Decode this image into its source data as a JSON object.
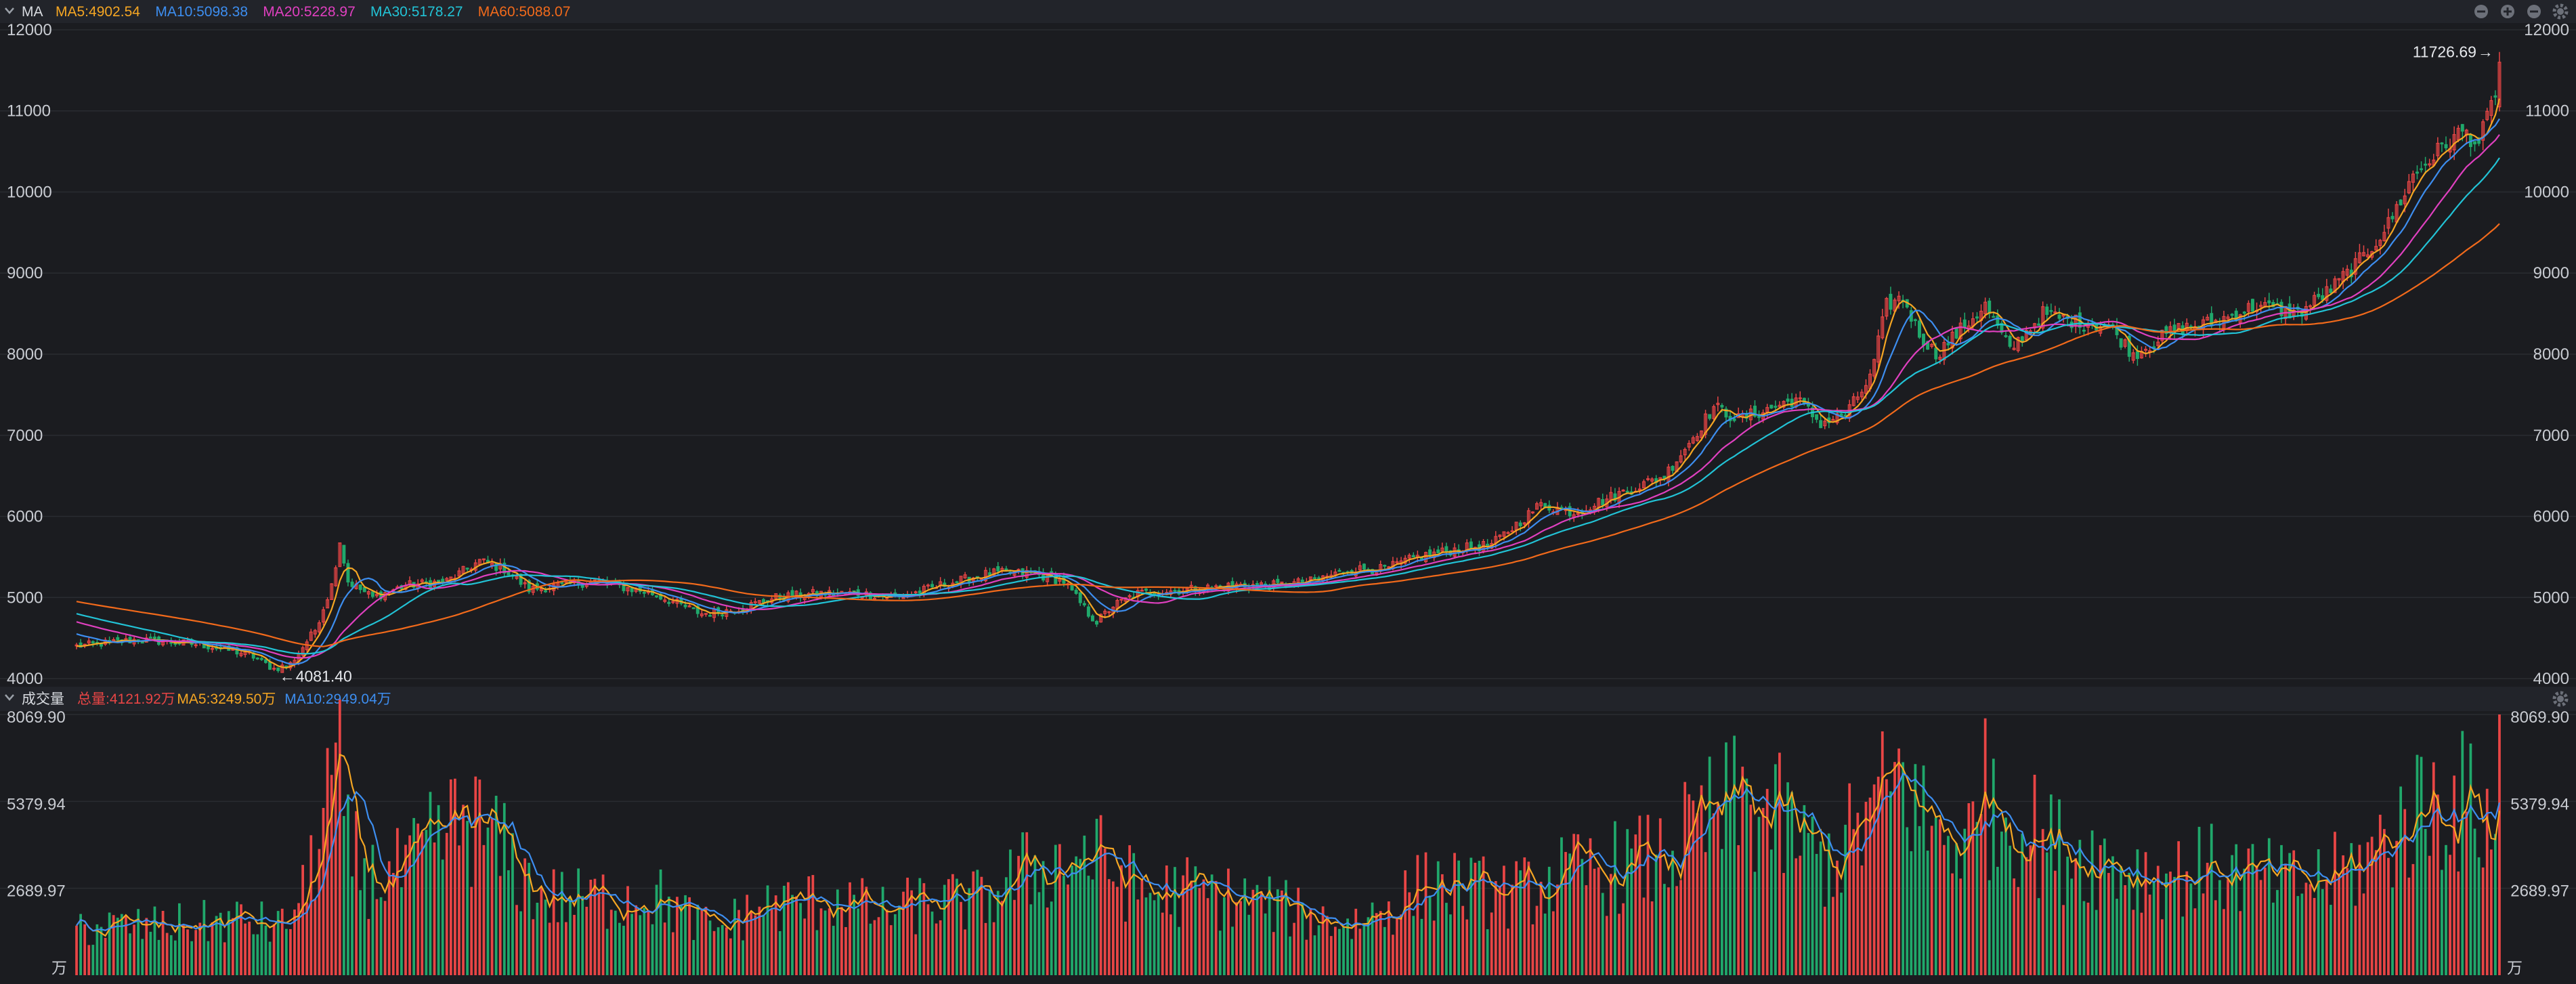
{
  "price_panel": {
    "title": "MA",
    "legend": [
      {
        "label": "MA5:4902.54",
        "color": "#f5a623"
      },
      {
        "label": "MA10:5098.38",
        "color": "#3d8ef0"
      },
      {
        "label": "MA20:5228.97",
        "color": "#e040c0"
      },
      {
        "label": "MA30:5178.27",
        "color": "#22c3d6"
      },
      {
        "label": "MA60:5088.07",
        "color": "#f26a1b"
      }
    ],
    "max_label": "11726.69",
    "min_label": "4081.40"
  },
  "volume_panel": {
    "title": "成交量",
    "legend": [
      {
        "label": "总量:4121.92万",
        "color": "#e84545"
      },
      {
        "label": "MA5:3249.50万",
        "color": "#f5a623"
      },
      {
        "label": "MA10:2949.04万",
        "color": "#3d8ef0"
      }
    ],
    "unit": "万"
  },
  "colors": {
    "up": "#e84545",
    "down": "#20a86b",
    "grid": "#2a2c31",
    "text": "#c9ccd2"
  },
  "chart_data": [
    {
      "type": "candlestick",
      "yticks": [
        "12000",
        "11000",
        "10000",
        "9000",
        "8000",
        "7000",
        "6000",
        "5000",
        "4000"
      ],
      "ylim": [
        3950,
        12050
      ],
      "ma_periods": [
        5,
        10,
        20,
        30,
        60
      ],
      "anchors": [
        [
          0,
          4400
        ],
        [
          15,
          4480
        ],
        [
          30,
          4420
        ],
        [
          42,
          4300
        ],
        [
          48,
          4120
        ],
        [
          52,
          4180
        ],
        [
          58,
          4600
        ],
        [
          62,
          5150
        ],
        [
          64,
          5700
        ],
        [
          66,
          5200
        ],
        [
          72,
          5000
        ],
        [
          80,
          5150
        ],
        [
          90,
          5200
        ],
        [
          98,
          5450
        ],
        [
          104,
          5350
        ],
        [
          110,
          5100
        ],
        [
          118,
          5150
        ],
        [
          126,
          5200
        ],
        [
          140,
          5050
        ],
        [
          152,
          4800
        ],
        [
          160,
          4850
        ],
        [
          170,
          5000
        ],
        [
          180,
          5050
        ],
        [
          190,
          5050
        ],
        [
          200,
          5000
        ],
        [
          210,
          5150
        ],
        [
          222,
          5300
        ],
        [
          232,
          5300
        ],
        [
          240,
          5200
        ],
        [
          246,
          4800
        ],
        [
          248,
          4700
        ],
        [
          252,
          4900
        ],
        [
          258,
          5050
        ],
        [
          270,
          5100
        ],
        [
          282,
          5150
        ],
        [
          292,
          5150
        ],
        [
          300,
          5200
        ],
        [
          310,
          5350
        ],
        [
          318,
          5350
        ],
        [
          326,
          5500
        ],
        [
          336,
          5600
        ],
        [
          344,
          5650
        ],
        [
          350,
          5900
        ],
        [
          356,
          6150
        ],
        [
          364,
          6050
        ],
        [
          376,
          6300
        ],
        [
          386,
          6500
        ],
        [
          394,
          7050
        ],
        [
          398,
          7350
        ],
        [
          404,
          7200
        ],
        [
          410,
          7300
        ],
        [
          418,
          7450
        ],
        [
          424,
          7150
        ],
        [
          430,
          7250
        ],
        [
          436,
          7700
        ],
        [
          440,
          8600
        ],
        [
          444,
          8700
        ],
        [
          448,
          8250
        ],
        [
          452,
          8000
        ],
        [
          458,
          8300
        ],
        [
          464,
          8600
        ],
        [
          470,
          8050
        ],
        [
          478,
          8500
        ],
        [
          486,
          8400
        ],
        [
          494,
          8350
        ],
        [
          500,
          8000
        ],
        [
          510,
          8300
        ],
        [
          520,
          8400
        ],
        [
          530,
          8600
        ],
        [
          540,
          8500
        ],
        [
          548,
          8800
        ],
        [
          556,
          9200
        ],
        [
          562,
          9600
        ],
        [
          568,
          10200
        ],
        [
          574,
          10500
        ],
        [
          580,
          10750
        ],
        [
          584,
          10600
        ],
        [
          587,
          11050
        ],
        [
          589,
          11450
        ]
      ],
      "max_label": "11726.69",
      "min_label": "4081.40"
    },
    {
      "type": "bar",
      "yticks": [
        "8069.90",
        "5379.94",
        "2689.97"
      ],
      "ylim": [
        0,
        8069.9
      ],
      "ma_periods": [
        5,
        10
      ],
      "unit": "万",
      "anchors": [
        [
          0,
          1500
        ],
        [
          20,
          1500
        ],
        [
          40,
          1700
        ],
        [
          50,
          1500
        ],
        [
          55,
          2400
        ],
        [
          60,
          4800
        ],
        [
          63,
          7000
        ],
        [
          66,
          3900
        ],
        [
          72,
          3000
        ],
        [
          80,
          3200
        ],
        [
          88,
          4200
        ],
        [
          95,
          4900
        ],
        [
          105,
          3600
        ],
        [
          112,
          2500
        ],
        [
          120,
          2300
        ],
        [
          130,
          2400
        ],
        [
          140,
          2500
        ],
        [
          150,
          1700
        ],
        [
          156,
          1400
        ],
        [
          165,
          2100
        ],
        [
          175,
          2200
        ],
        [
          185,
          2400
        ],
        [
          195,
          1900
        ],
        [
          205,
          2200
        ],
        [
          220,
          2300
        ],
        [
          232,
          3300
        ],
        [
          240,
          3500
        ],
        [
          246,
          3800
        ],
        [
          252,
          3200
        ],
        [
          260,
          2500
        ],
        [
          270,
          2600
        ],
        [
          280,
          2400
        ],
        [
          290,
          2200
        ],
        [
          300,
          1800
        ],
        [
          310,
          1600
        ],
        [
          320,
          2200
        ],
        [
          330,
          2900
        ],
        [
          340,
          2600
        ],
        [
          350,
          2500
        ],
        [
          360,
          3000
        ],
        [
          372,
          3300
        ],
        [
          386,
          3600
        ],
        [
          396,
          4700
        ],
        [
          404,
          5300
        ],
        [
          412,
          5000
        ],
        [
          420,
          4000
        ],
        [
          426,
          3500
        ],
        [
          432,
          4300
        ],
        [
          440,
          5600
        ],
        [
          444,
          6200
        ],
        [
          450,
          4500
        ],
        [
          460,
          4200
        ],
        [
          470,
          5000
        ],
        [
          480,
          4000
        ],
        [
          490,
          3700
        ],
        [
          500,
          3200
        ],
        [
          510,
          3100
        ],
        [
          520,
          3300
        ],
        [
          530,
          3000
        ],
        [
          540,
          2800
        ],
        [
          550,
          3100
        ],
        [
          558,
          3700
        ],
        [
          566,
          4800
        ],
        [
          574,
          5500
        ],
        [
          580,
          5300
        ],
        [
          585,
          5000
        ],
        [
          589,
          4800
        ]
      ]
    }
  ]
}
